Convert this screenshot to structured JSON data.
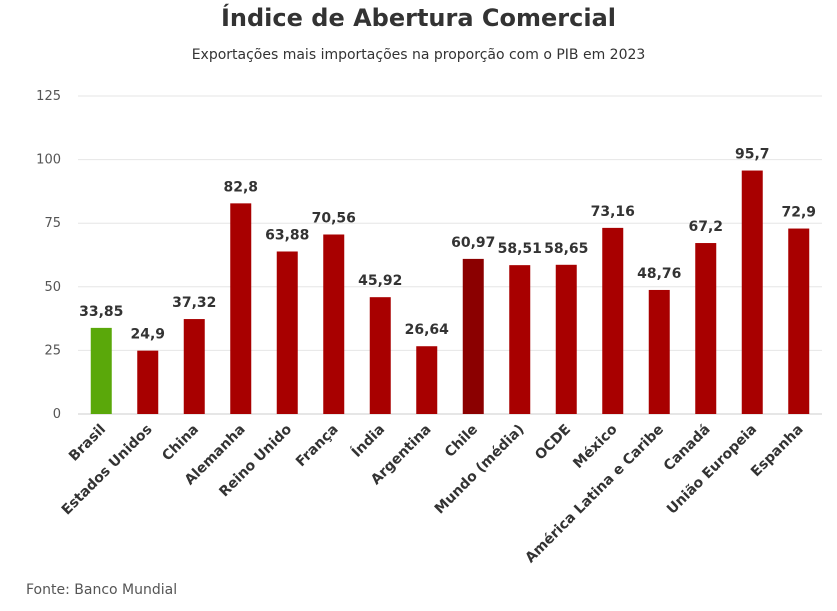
{
  "chart_data": {
    "type": "bar",
    "title": "Índice de Abertura Comercial",
    "subtitle": "Exportações mais importações na proporção com o PIB em 2023",
    "xlabel": "",
    "ylabel": "",
    "ylim": [
      0,
      125
    ],
    "yticks": [
      0,
      25,
      50,
      75,
      100,
      125
    ],
    "grid": true,
    "categories": [
      "Brasil",
      "Estados Unidos",
      "China",
      "Alemanha",
      "Reino Unido",
      "França",
      "Índia",
      "Argentina",
      "Chile",
      "Mundo (média)",
      "OCDE",
      "México",
      "América Latina e Caribe",
      "Canadá",
      "União Europeia",
      "Espanha"
    ],
    "values": [
      33.85,
      24.9,
      37.32,
      82.8,
      63.88,
      70.56,
      45.92,
      26.64,
      60.97,
      58.51,
      58.65,
      73.16,
      48.76,
      67.2,
      95.7,
      72.9
    ],
    "value_labels": [
      "33,85",
      "24,9",
      "37,32",
      "82,8",
      "63,88",
      "70,56",
      "45,92",
      "26,64",
      "60,97",
      "58,51",
      "58,65",
      "73,16",
      "48,76",
      "67,2",
      "95,7",
      "72,9"
    ],
    "colors": [
      "#5aa80a",
      "#a80000",
      "#a80000",
      "#a80000",
      "#a80000",
      "#a80000",
      "#a80000",
      "#a80000",
      "#8b0000",
      "#a80000",
      "#a80000",
      "#a80000",
      "#a80000",
      "#a80000",
      "#a80000",
      "#a80000"
    ],
    "source": "Fonte: Banco Mundial"
  }
}
